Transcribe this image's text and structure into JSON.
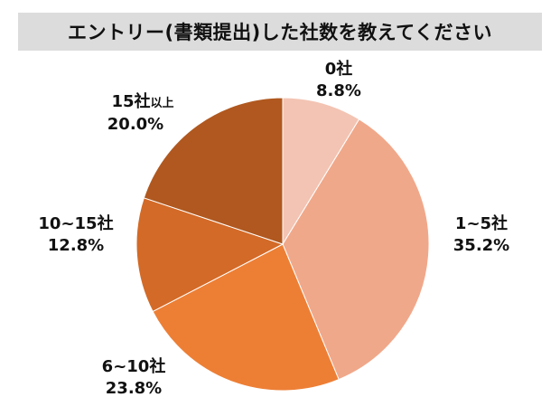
{
  "chart_data": {
    "type": "pie",
    "title": "エントリー(書類提出)した社数を教えてください",
    "start": "top",
    "direction": "clockwise",
    "slices": [
      {
        "label": "0社",
        "value": 8.8,
        "value_text": "8.8%",
        "color": "#f3c4b3"
      },
      {
        "label": "1~5社",
        "value": 35.2,
        "value_text": "35.2%",
        "color": "#f0a88a"
      },
      {
        "label": "6~10社",
        "value": 23.8,
        "value_text": "23.8%",
        "color": "#ed7f35"
      },
      {
        "label": "10~15社",
        "value": 12.8,
        "value_text": "12.8%",
        "color": "#d36a27"
      },
      {
        "label": "15社",
        "label_suffix": "以上",
        "value": 20.0,
        "value_text": "20.0%",
        "color": "#b0581f"
      }
    ]
  }
}
